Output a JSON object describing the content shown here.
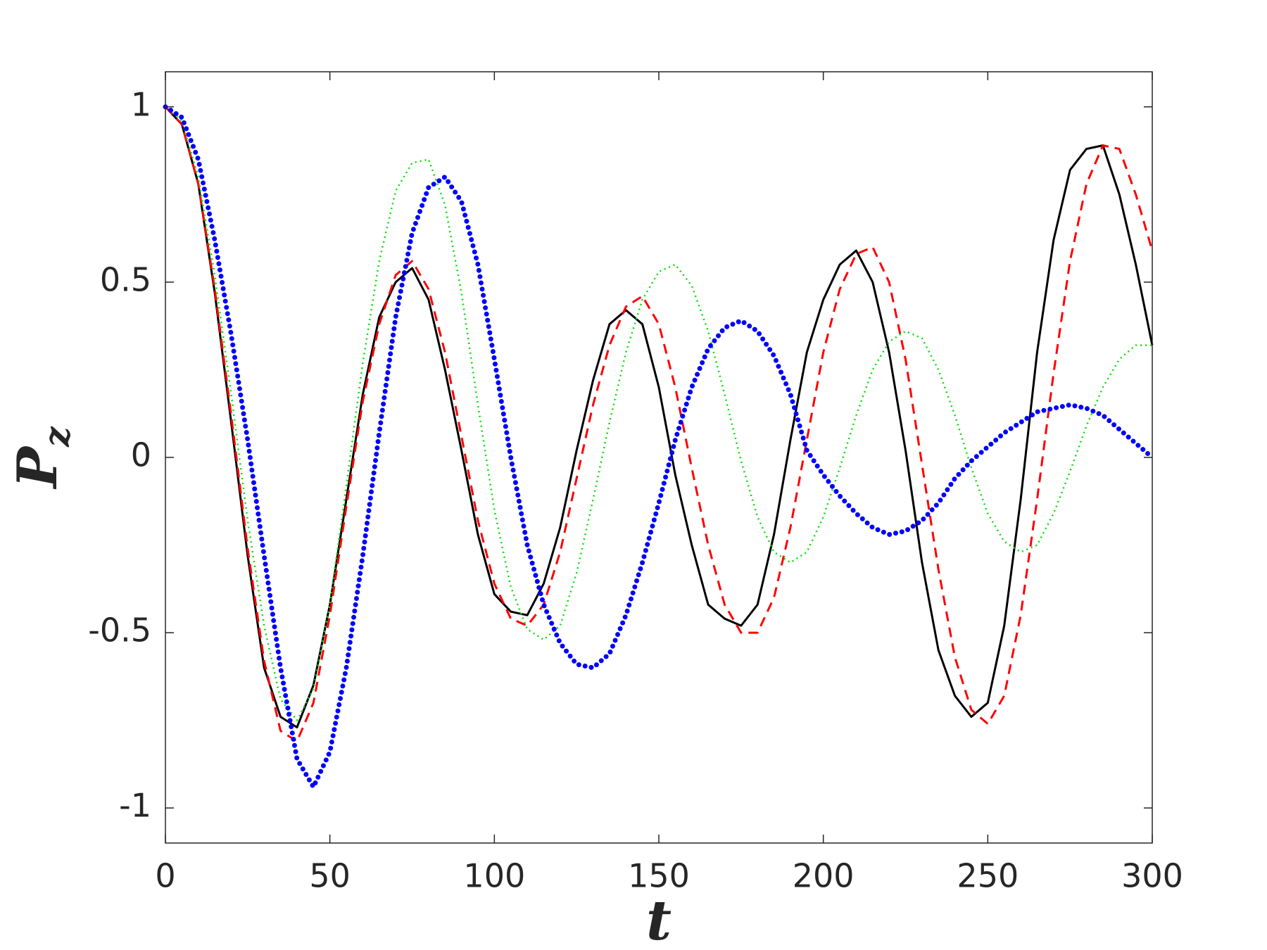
{
  "chart_data": {
    "type": "line",
    "xlabel": "t",
    "ylabel": {
      "main": "P",
      "sub": "z"
    },
    "xlim": [
      0,
      300
    ],
    "ylim": [
      -1.1,
      1.1
    ],
    "xticks": [
      0,
      50,
      100,
      150,
      200,
      250,
      300
    ],
    "yticks": [
      -1,
      -0.5,
      0,
      0.5,
      1
    ],
    "grid": false,
    "x": [
      0,
      5,
      10,
      15,
      20,
      25,
      30,
      35,
      40,
      45,
      50,
      55,
      60,
      65,
      70,
      75,
      80,
      85,
      90,
      95,
      100,
      105,
      110,
      115,
      120,
      125,
      130,
      135,
      140,
      145,
      150,
      155,
      160,
      165,
      170,
      175,
      180,
      185,
      190,
      195,
      200,
      205,
      210,
      215,
      220,
      225,
      230,
      235,
      240,
      245,
      250,
      255,
      260,
      265,
      270,
      275,
      280,
      285,
      290,
      295,
      300
    ],
    "series": [
      {
        "color": "#000000",
        "style": "solid",
        "values": [
          1,
          0.95,
          0.78,
          0.47,
          0.1,
          -0.28,
          -0.6,
          -0.74,
          -0.77,
          -0.65,
          -0.42,
          -0.12,
          0.18,
          0.4,
          0.5,
          0.54,
          0.45,
          0.25,
          0.02,
          -0.22,
          -0.39,
          -0.44,
          -0.45,
          -0.36,
          -0.2,
          0.02,
          0.22,
          0.38,
          0.42,
          0.38,
          0.2,
          -0.05,
          -0.25,
          -0.42,
          -0.46,
          -0.48,
          -0.42,
          -0.22,
          0.05,
          0.3,
          0.45,
          0.55,
          0.59,
          0.5,
          0.3,
          0.02,
          -0.3,
          -0.55,
          -0.68,
          -0.74,
          -0.7,
          -0.48,
          -0.12,
          0.3,
          0.62,
          0.82,
          0.88,
          0.89,
          0.75,
          0.55,
          0.32
        ]
      },
      {
        "color": "#ff0000",
        "style": "dashed",
        "values": [
          1,
          0.95,
          0.78,
          0.48,
          0.12,
          -0.26,
          -0.58,
          -0.78,
          -0.81,
          -0.7,
          -0.45,
          -0.14,
          0.16,
          0.38,
          0.52,
          0.56,
          0.48,
          0.3,
          0.06,
          -0.18,
          -0.36,
          -0.46,
          -0.48,
          -0.42,
          -0.27,
          -0.06,
          0.15,
          0.32,
          0.43,
          0.46,
          0.38,
          0.2,
          -0.03,
          -0.25,
          -0.42,
          -0.5,
          -0.5,
          -0.4,
          -0.2,
          0.05,
          0.3,
          0.48,
          0.58,
          0.6,
          0.5,
          0.28,
          -0.02,
          -0.32,
          -0.57,
          -0.72,
          -0.76,
          -0.68,
          -0.45,
          -0.12,
          0.24,
          0.56,
          0.78,
          0.89,
          0.88,
          0.75,
          0.59
        ]
      },
      {
        "color": "#00e000",
        "style": "dotted",
        "values": [
          1,
          0.96,
          0.8,
          0.52,
          0.18,
          -0.18,
          -0.48,
          -0.69,
          -0.75,
          -0.66,
          -0.42,
          -0.08,
          0.27,
          0.56,
          0.76,
          0.84,
          0.85,
          0.72,
          0.47,
          0.15,
          -0.15,
          -0.37,
          -0.49,
          -0.52,
          -0.48,
          -0.33,
          -0.12,
          0.1,
          0.3,
          0.45,
          0.53,
          0.55,
          0.49,
          0.36,
          0.18,
          -0.01,
          -0.17,
          -0.27,
          -0.3,
          -0.27,
          -0.17,
          -0.03,
          0.12,
          0.25,
          0.33,
          0.36,
          0.34,
          0.25,
          0.12,
          -0.03,
          -0.16,
          -0.24,
          -0.27,
          -0.25,
          -0.16,
          -0.04,
          0.09,
          0.2,
          0.28,
          0.32,
          0.32
        ]
      },
      {
        "color": "#0000ff",
        "style": "dots",
        "values": [
          1,
          0.97,
          0.85,
          0.62,
          0.35,
          0.05,
          -0.28,
          -0.6,
          -0.86,
          -0.94,
          -0.84,
          -0.6,
          -0.28,
          0.07,
          0.4,
          0.64,
          0.77,
          0.8,
          0.73,
          0.55,
          0.28,
          0.0,
          -0.25,
          -0.42,
          -0.53,
          -0.59,
          -0.6,
          -0.56,
          -0.45,
          -0.3,
          -0.13,
          0.05,
          0.2,
          0.31,
          0.37,
          0.39,
          0.36,
          0.29,
          0.18,
          0.02,
          -0.05,
          -0.11,
          -0.16,
          -0.2,
          -0.22,
          -0.21,
          -0.18,
          -0.13,
          -0.06,
          -0.01,
          0.03,
          0.07,
          0.1,
          0.13,
          0.14,
          0.15,
          0.14,
          0.12,
          0.08,
          0.04,
          0.0
        ]
      }
    ]
  }
}
